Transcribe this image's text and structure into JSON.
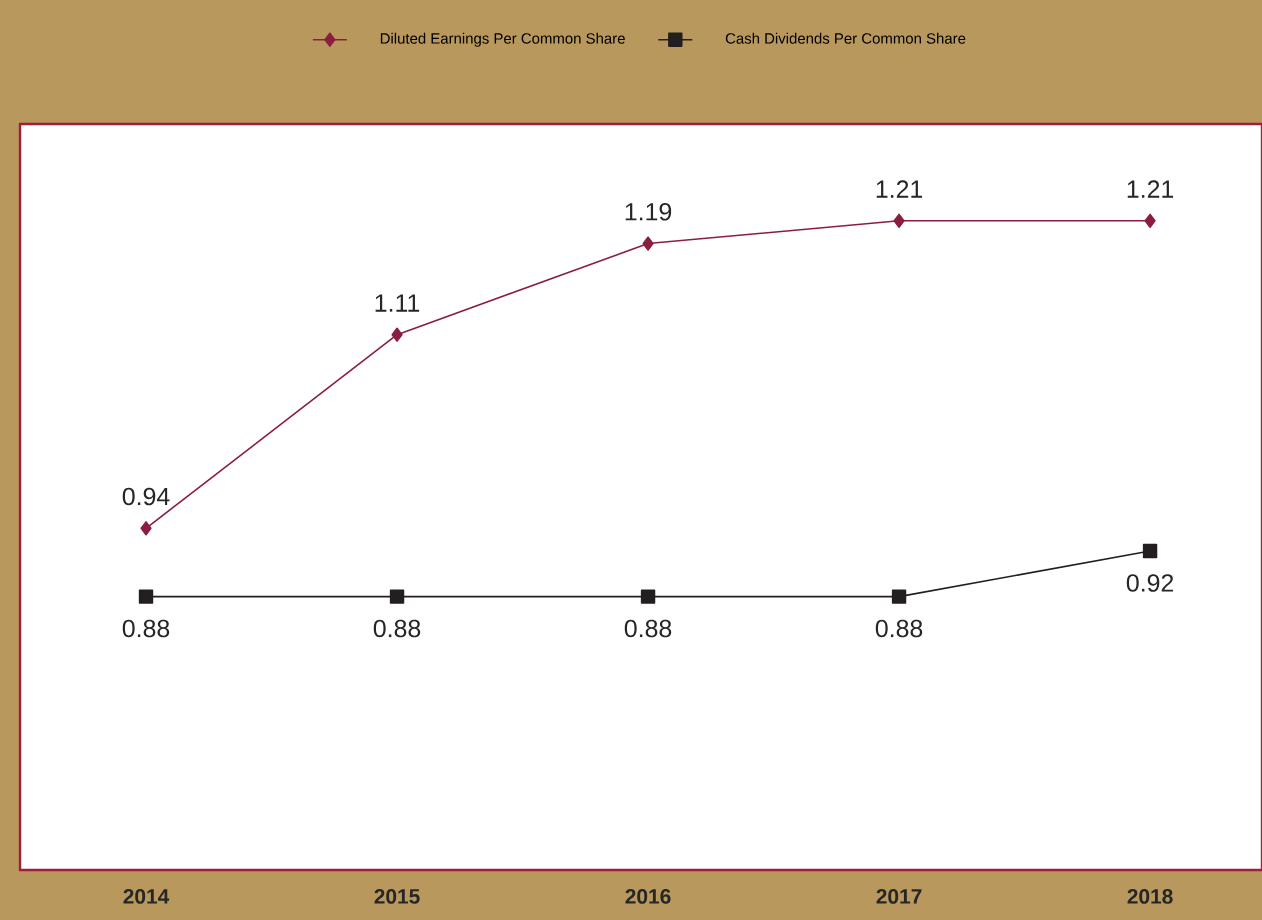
{
  "chart_data": {
    "type": "line",
    "categories": [
      "2014",
      "2015",
      "2016",
      "2017",
      "2018"
    ],
    "series": [
      {
        "name": "Diluted Earnings Per Common Share",
        "color": "#8b1e3f",
        "marker": "diamond",
        "values": [
          0.94,
          1.11,
          1.19,
          1.21,
          1.21
        ]
      },
      {
        "name": "Cash Dividends Per Common Share",
        "color": "#231f20",
        "marker": "square",
        "values": [
          0.88,
          0.88,
          0.88,
          0.88,
          0.92
        ]
      }
    ],
    "ylim": [
      0.64,
      1.295
    ],
    "data_labels": true,
    "legend": "top",
    "grid": false,
    "tick_labels": "x",
    "line_style": "solid"
  }
}
